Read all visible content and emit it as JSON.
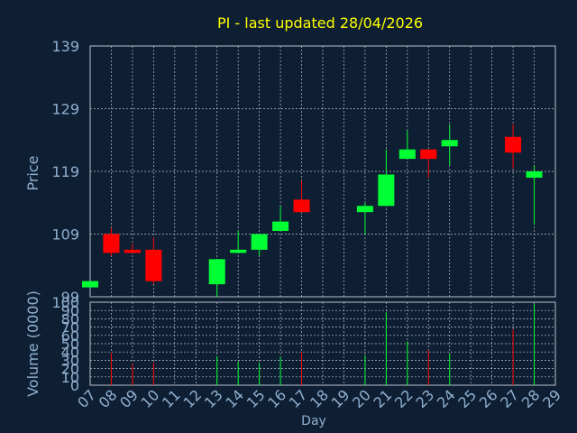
{
  "chart_data": [
    {
      "type": "candlestick",
      "title": "PI - last updated 28/04/2026",
      "ylabel": "Price",
      "xlabel": "",
      "ylim": [
        99,
        139
      ],
      "y_ticks": [
        "139",
        "129",
        "119",
        "109",
        "99"
      ],
      "grid": true,
      "x_ticks": [
        "07",
        "08",
        "09",
        "10",
        "11",
        "12",
        "13",
        "14",
        "15",
        "16",
        "17",
        "18",
        "19",
        "20",
        "21",
        "22",
        "23",
        "24",
        "25",
        "26",
        "27",
        "28",
        "29"
      ],
      "candles": [
        {
          "day": "07",
          "open": 100.5,
          "close": 101.5,
          "high": 101.5,
          "low": 100.5,
          "direction": "up"
        },
        {
          "day": "08",
          "open": 109.0,
          "close": 106.0,
          "high": 110.0,
          "low": 105.5,
          "direction": "down"
        },
        {
          "day": "09",
          "open": 106.5,
          "close": 106.0,
          "high": 107.5,
          "low": 106.0,
          "direction": "down"
        },
        {
          "day": "10",
          "open": 106.5,
          "close": 101.5,
          "high": 108.5,
          "low": 101.0,
          "direction": "down"
        },
        {
          "day": "13",
          "open": 101.0,
          "close": 105.0,
          "high": 105.0,
          "low": 99.0,
          "direction": "up"
        },
        {
          "day": "14",
          "open": 106.0,
          "close": 106.5,
          "high": 109.5,
          "low": 106.0,
          "direction": "up"
        },
        {
          "day": "15",
          "open": 106.5,
          "close": 109.0,
          "high": 109.0,
          "low": 105.5,
          "direction": "up"
        },
        {
          "day": "16",
          "open": 109.5,
          "close": 111.0,
          "high": 113.5,
          "low": 109.5,
          "direction": "up"
        },
        {
          "day": "17",
          "open": 114.5,
          "close": 112.5,
          "high": 117.5,
          "low": 112.5,
          "direction": "down"
        },
        {
          "day": "20",
          "open": 112.5,
          "close": 113.5,
          "high": 114.0,
          "low": 109.0,
          "direction": "up"
        },
        {
          "day": "21",
          "open": 113.5,
          "close": 118.5,
          "high": 122.5,
          "low": 113.5,
          "direction": "up"
        },
        {
          "day": "22",
          "open": 121.0,
          "close": 122.5,
          "high": 125.5,
          "low": 121.0,
          "direction": "up"
        },
        {
          "day": "23",
          "open": 122.5,
          "close": 121.0,
          "high": 122.5,
          "low": 118.0,
          "direction": "down"
        },
        {
          "day": "24",
          "open": 123.0,
          "close": 124.0,
          "high": 126.5,
          "low": 120.0,
          "direction": "up"
        },
        {
          "day": "27",
          "open": 124.5,
          "close": 122.0,
          "high": 126.5,
          "low": 119.5,
          "direction": "down"
        },
        {
          "day": "28",
          "open": 118.0,
          "close": 119.0,
          "high": 120.0,
          "low": 110.5,
          "direction": "up"
        }
      ]
    },
    {
      "type": "bar",
      "title": "",
      "ylabel": "Volume (0000)",
      "xlabel": "Day",
      "ylim": [
        0,
        100
      ],
      "y_ticks": [
        "100",
        "90",
        "80",
        "70",
        "60",
        "50",
        "40",
        "30",
        "20",
        "10",
        "0"
      ],
      "grid": true,
      "categories": [
        "07",
        "08",
        "09",
        "10",
        "13",
        "14",
        "15",
        "16",
        "17",
        "20",
        "21",
        "22",
        "23",
        "24",
        "27",
        "28"
      ],
      "values": [
        0,
        39,
        26,
        27,
        35,
        28,
        27,
        34,
        40,
        36,
        88,
        53,
        42,
        38,
        67,
        98
      ],
      "directions": [
        "up",
        "down",
        "down",
        "down",
        "up",
        "up",
        "up",
        "up",
        "down",
        "up",
        "up",
        "up",
        "down",
        "up",
        "down",
        "up"
      ]
    }
  ],
  "colors": {
    "background": "#0f1f33",
    "grid": "#b8c0cc",
    "axis_text": "#8fb0d0",
    "title": "#ffff00",
    "up": "#00ff33",
    "down": "#ff0000"
  }
}
